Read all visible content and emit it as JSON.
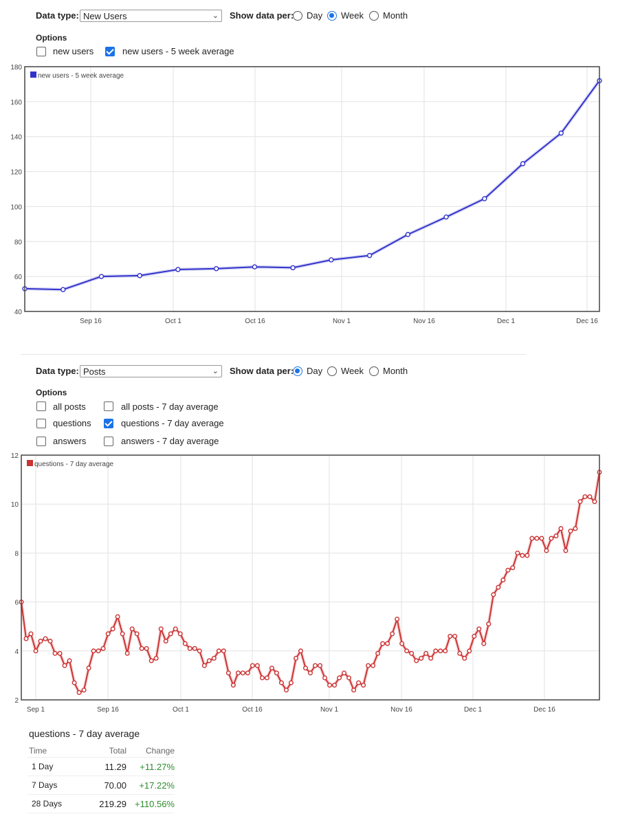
{
  "panel1": {
    "data_type_label": "Data type:",
    "data_type_value": "New Users",
    "show_per_label": "Show data per:",
    "radios": [
      {
        "label": "Day",
        "selected": false
      },
      {
        "label": "Week",
        "selected": true
      },
      {
        "label": "Month",
        "selected": false
      }
    ],
    "options_label": "Options",
    "checkboxes": [
      {
        "label": "new users",
        "checked": false
      },
      {
        "label": "new users - 5 week average",
        "checked": true
      }
    ]
  },
  "panel2": {
    "data_type_label": "Data type:",
    "data_type_value": "Posts",
    "show_per_label": "Show data per:",
    "radios": [
      {
        "label": "Day",
        "selected": true
      },
      {
        "label": "Week",
        "selected": false
      },
      {
        "label": "Month",
        "selected": false
      }
    ],
    "options_label": "Options",
    "checkboxes": [
      {
        "label": "all posts",
        "checked": false
      },
      {
        "label": "all posts - 7 day average",
        "checked": false
      },
      {
        "label": "questions",
        "checked": false
      },
      {
        "label": "questions - 7 day average",
        "checked": true
      },
      {
        "label": "answers",
        "checked": false
      },
      {
        "label": "answers - 7 day average",
        "checked": false
      }
    ]
  },
  "chart_data": [
    {
      "type": "line",
      "legend": "new users - 5 week average",
      "color": "#3333cc",
      "ylim": [
        40,
        180
      ],
      "yticks": [
        40,
        60,
        80,
        100,
        120,
        140,
        160,
        180
      ],
      "x_date_ticks": [
        "Sep 16",
        "Oct 1",
        "Oct 16",
        "Nov 1",
        "Nov 16",
        "Dec 1",
        "Dec 16"
      ],
      "values": [
        53,
        52.5,
        60,
        60.5,
        64,
        64.5,
        65.5,
        65,
        69.5,
        72,
        84,
        94,
        104.5,
        124.5,
        142,
        172
      ]
    },
    {
      "type": "line",
      "legend": "questions - 7 day average",
      "color": "#cc3333",
      "ylim": [
        2,
        12
      ],
      "yticks": [
        2,
        4,
        6,
        8,
        10,
        12
      ],
      "x_date_ticks": [
        "Sep 1",
        "Sep 16",
        "Oct 1",
        "Oct 16",
        "Nov 1",
        "Nov 16",
        "Dec 1",
        "Dec 16"
      ],
      "values": [
        6,
        4.5,
        4.7,
        4,
        4.4,
        4.5,
        4.4,
        3.9,
        3.9,
        3.4,
        3.6,
        2.7,
        2.3,
        2.4,
        3.3,
        4,
        4,
        4.1,
        4.7,
        4.9,
        5.4,
        4.7,
        3.9,
        4.9,
        4.7,
        4.1,
        4.1,
        3.6,
        3.7,
        4.9,
        4.4,
        4.7,
        4.9,
        4.7,
        4.3,
        4.1,
        4.1,
        4,
        3.4,
        3.6,
        3.7,
        4,
        4,
        3.1,
        2.6,
        3.1,
        3.1,
        3.1,
        3.4,
        3.4,
        2.9,
        2.9,
        3.3,
        3.1,
        2.7,
        2.4,
        2.7,
        3.7,
        4,
        3.3,
        3.1,
        3.4,
        3.4,
        2.9,
        2.6,
        2.6,
        2.9,
        3.1,
        2.9,
        2.4,
        2.7,
        2.6,
        3.4,
        3.4,
        3.9,
        4.3,
        4.3,
        4.7,
        5.3,
        4.3,
        4,
        3.9,
        3.6,
        3.7,
        3.9,
        3.7,
        4,
        4,
        4,
        4.6,
        4.6,
        3.9,
        3.7,
        4,
        4.6,
        4.9,
        4.3,
        5.1,
        6.3,
        6.6,
        6.9,
        7.3,
        7.4,
        8,
        7.9,
        7.9,
        8.6,
        8.6,
        8.6,
        8.1,
        8.6,
        8.7,
        9,
        8.1,
        8.9,
        9,
        10.1,
        10.3,
        10.3,
        10.1,
        11.3
      ]
    }
  ],
  "summary": {
    "title": "questions - 7 day average",
    "headers": [
      "Time",
      "Total",
      "Change"
    ],
    "rows": [
      {
        "time": "1 Day",
        "total": "11.29",
        "change": "+11.27%"
      },
      {
        "time": "7 Days",
        "total": "70.00",
        "change": "+17.22%"
      },
      {
        "time": "28 Days",
        "total": "219.29",
        "change": "+110.56%"
      }
    ]
  }
}
